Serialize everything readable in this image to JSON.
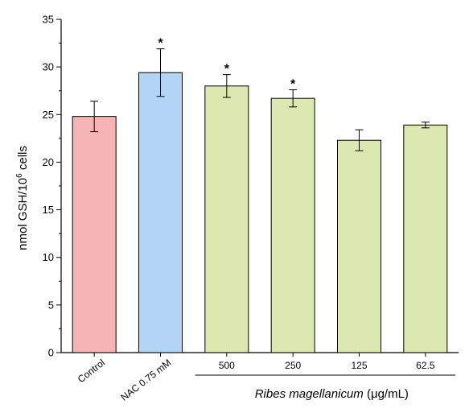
{
  "chart_data": {
    "type": "bar",
    "categories": [
      "Control",
      "NAC 0.75 mM",
      "500",
      "250",
      "125",
      "62.5"
    ],
    "values": [
      24.8,
      29.4,
      28.0,
      26.7,
      22.3,
      23.9
    ],
    "errors": [
      1.6,
      2.5,
      1.2,
      0.9,
      1.1,
      0.3
    ],
    "significant": [
      "",
      "*",
      "*",
      "*",
      "",
      ""
    ],
    "colors": [
      "#f7b4b4",
      "#b3d4f5",
      "#dde8b0",
      "#dde8b0",
      "#dde8b0",
      "#dde8b0"
    ],
    "ylabel_prefix": "nmol GSH/10",
    "ylabel_exp": "6",
    "ylabel_suffix": " cells",
    "ylim": [
      0,
      35
    ],
    "yticks": [
      "0",
      "5",
      "10",
      "15",
      "20",
      "25",
      "30",
      "35"
    ],
    "group_label": {
      "name": "Ribes magellanicum",
      "unit": " (μg/mL)",
      "start_index": 2,
      "end_index": 5
    }
  }
}
